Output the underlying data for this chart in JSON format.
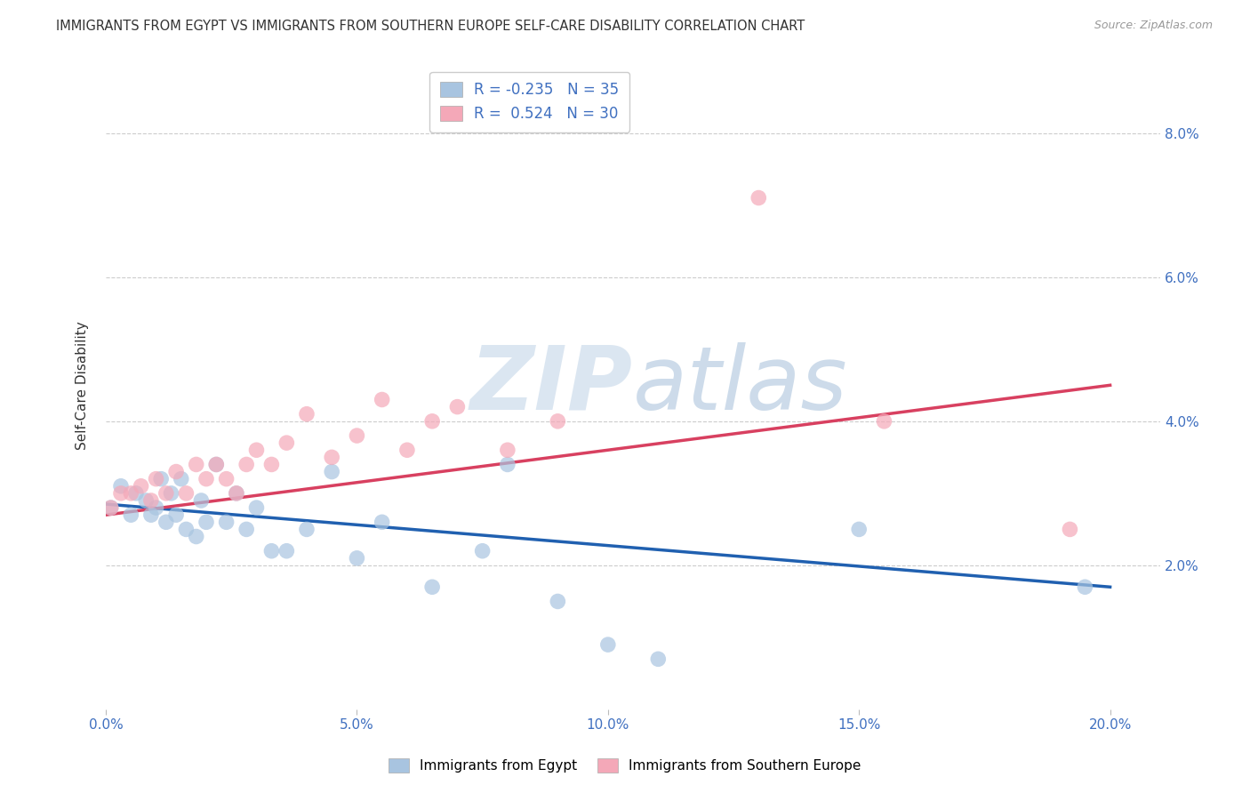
{
  "title": "IMMIGRANTS FROM EGYPT VS IMMIGRANTS FROM SOUTHERN EUROPE SELF-CARE DISABILITY CORRELATION CHART",
  "source": "Source: ZipAtlas.com",
  "ylabel": "Self-Care Disability",
  "xlim": [
    0.0,
    0.21
  ],
  "ylim": [
    0.0,
    0.09
  ],
  "xtick_vals": [
    0.0,
    0.05,
    0.1,
    0.15,
    0.2
  ],
  "xtick_labels": [
    "0.0%",
    "5.0%",
    "10.0%",
    "15.0%",
    "20.0%"
  ],
  "ytick_vals": [
    0.02,
    0.04,
    0.06,
    0.08
  ],
  "ytick_labels": [
    "2.0%",
    "4.0%",
    "6.0%",
    "8.0%"
  ],
  "blue_R": -0.235,
  "blue_N": 35,
  "pink_R": 0.524,
  "pink_N": 30,
  "blue_color": "#a8c4e0",
  "pink_color": "#f4a8b8",
  "blue_line_color": "#2060b0",
  "pink_line_color": "#d84060",
  "watermark_color": "#d8e4f0",
  "grid_color": "#cccccc",
  "title_color": "#333333",
  "axis_color": "#4070c0",
  "source_color": "#999999",
  "blue_x": [
    0.001,
    0.003,
    0.005,
    0.006,
    0.008,
    0.009,
    0.01,
    0.011,
    0.012,
    0.013,
    0.014,
    0.015,
    0.016,
    0.018,
    0.019,
    0.02,
    0.022,
    0.024,
    0.026,
    0.028,
    0.03,
    0.033,
    0.036,
    0.04,
    0.045,
    0.05,
    0.055,
    0.065,
    0.075,
    0.08,
    0.09,
    0.1,
    0.11,
    0.15,
    0.195
  ],
  "blue_y": [
    0.028,
    0.031,
    0.027,
    0.03,
    0.029,
    0.027,
    0.028,
    0.032,
    0.026,
    0.03,
    0.027,
    0.032,
    0.025,
    0.024,
    0.029,
    0.026,
    0.034,
    0.026,
    0.03,
    0.025,
    0.028,
    0.022,
    0.022,
    0.025,
    0.033,
    0.021,
    0.026,
    0.017,
    0.022,
    0.034,
    0.015,
    0.009,
    0.007,
    0.025,
    0.017
  ],
  "pink_x": [
    0.001,
    0.003,
    0.005,
    0.007,
    0.009,
    0.01,
    0.012,
    0.014,
    0.016,
    0.018,
    0.02,
    0.022,
    0.024,
    0.026,
    0.028,
    0.03,
    0.033,
    0.036,
    0.04,
    0.045,
    0.05,
    0.055,
    0.06,
    0.065,
    0.07,
    0.08,
    0.09,
    0.13,
    0.155,
    0.192
  ],
  "pink_y": [
    0.028,
    0.03,
    0.03,
    0.031,
    0.029,
    0.032,
    0.03,
    0.033,
    0.03,
    0.034,
    0.032,
    0.034,
    0.032,
    0.03,
    0.034,
    0.036,
    0.034,
    0.037,
    0.041,
    0.035,
    0.038,
    0.043,
    0.036,
    0.04,
    0.042,
    0.036,
    0.04,
    0.071,
    0.04,
    0.025
  ],
  "blue_line_x": [
    0.0,
    0.2
  ],
  "blue_line_y": [
    0.0285,
    0.017
  ],
  "pink_line_x": [
    0.0,
    0.2
  ],
  "pink_line_y": [
    0.027,
    0.045
  ]
}
